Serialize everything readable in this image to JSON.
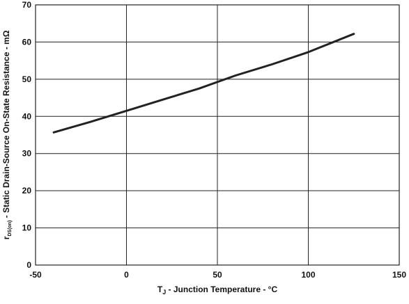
{
  "chart_data": {
    "type": "line",
    "xlabel": {
      "main": "T",
      "sub": "J",
      "rest": " - Junction Temperature - °C"
    },
    "ylabel": {
      "main": "r",
      "sub": "DS(on)",
      "rest": " - Static Drain-Source On-State Resistance - mΩ"
    },
    "xlim": [
      -50,
      150
    ],
    "ylim": [
      0,
      70
    ],
    "x_ticks": [
      -50,
      0,
      50,
      100,
      150
    ],
    "y_ticks": [
      0,
      10,
      20,
      30,
      40,
      50,
      60,
      70
    ],
    "x_tick_labels": [
      "-50",
      "0",
      "50",
      "100",
      "150"
    ],
    "y_tick_labels": [
      "0",
      "10",
      "20",
      "30",
      "40",
      "50",
      "60",
      "70"
    ],
    "grid": true,
    "line_color": "#222222",
    "series": [
      {
        "x": [
          -40,
          -20,
          0,
          20,
          40,
          60,
          80,
          100,
          125
        ],
        "y": [
          35.7,
          38.5,
          41.5,
          44.5,
          47.5,
          51.0,
          54.0,
          57.3,
          62.2
        ]
      }
    ]
  }
}
